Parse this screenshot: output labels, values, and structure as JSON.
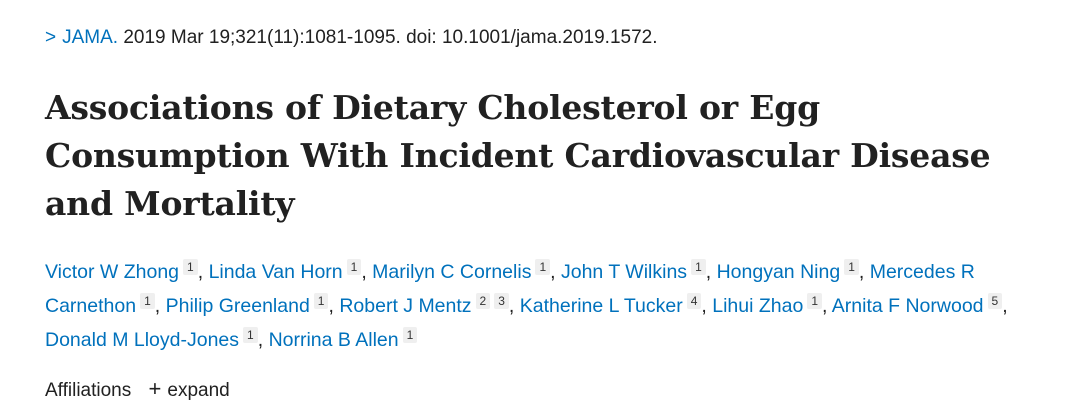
{
  "citation": {
    "journal": "JAMA.",
    "details": "2019 Mar 19;321(11):1081-1095. doi: 10.1001/jama.2019.1572."
  },
  "title": "Associations of Dietary Cholesterol or Egg Consumption With Incident Cardiovascular Disease and Mortality",
  "authors": [
    {
      "name": "Victor W Zhong",
      "aff": [
        "1"
      ]
    },
    {
      "name": "Linda Van Horn",
      "aff": [
        "1"
      ]
    },
    {
      "name": "Marilyn C Cornelis",
      "aff": [
        "1"
      ]
    },
    {
      "name": "John T Wilkins",
      "aff": [
        "1"
      ]
    },
    {
      "name": "Hongyan Ning",
      "aff": [
        "1"
      ]
    },
    {
      "name": "Mercedes R Carnethon",
      "aff": [
        "1"
      ]
    },
    {
      "name": "Philip Greenland",
      "aff": [
        "1"
      ]
    },
    {
      "name": "Robert J Mentz",
      "aff": [
        "2",
        "3"
      ]
    },
    {
      "name": "Katherine L Tucker",
      "aff": [
        "4"
      ]
    },
    {
      "name": "Lihui Zhao",
      "aff": [
        "1"
      ]
    },
    {
      "name": "Arnita F Norwood",
      "aff": [
        "5"
      ]
    },
    {
      "name": "Donald M Lloyd-Jones",
      "aff": [
        "1"
      ]
    },
    {
      "name": "Norrina B Allen",
      "aff": [
        "1"
      ]
    }
  ],
  "separator": ",",
  "affiliations": {
    "label": "Affiliations",
    "toggle_symbol": "+",
    "toggle_label": "expand"
  },
  "icons": {
    "chevron": "chevron-right-icon",
    "plus": "plus-icon"
  },
  "colors": {
    "link": "#0071bc",
    "text": "#212121",
    "badge_bg": "#efefef"
  }
}
